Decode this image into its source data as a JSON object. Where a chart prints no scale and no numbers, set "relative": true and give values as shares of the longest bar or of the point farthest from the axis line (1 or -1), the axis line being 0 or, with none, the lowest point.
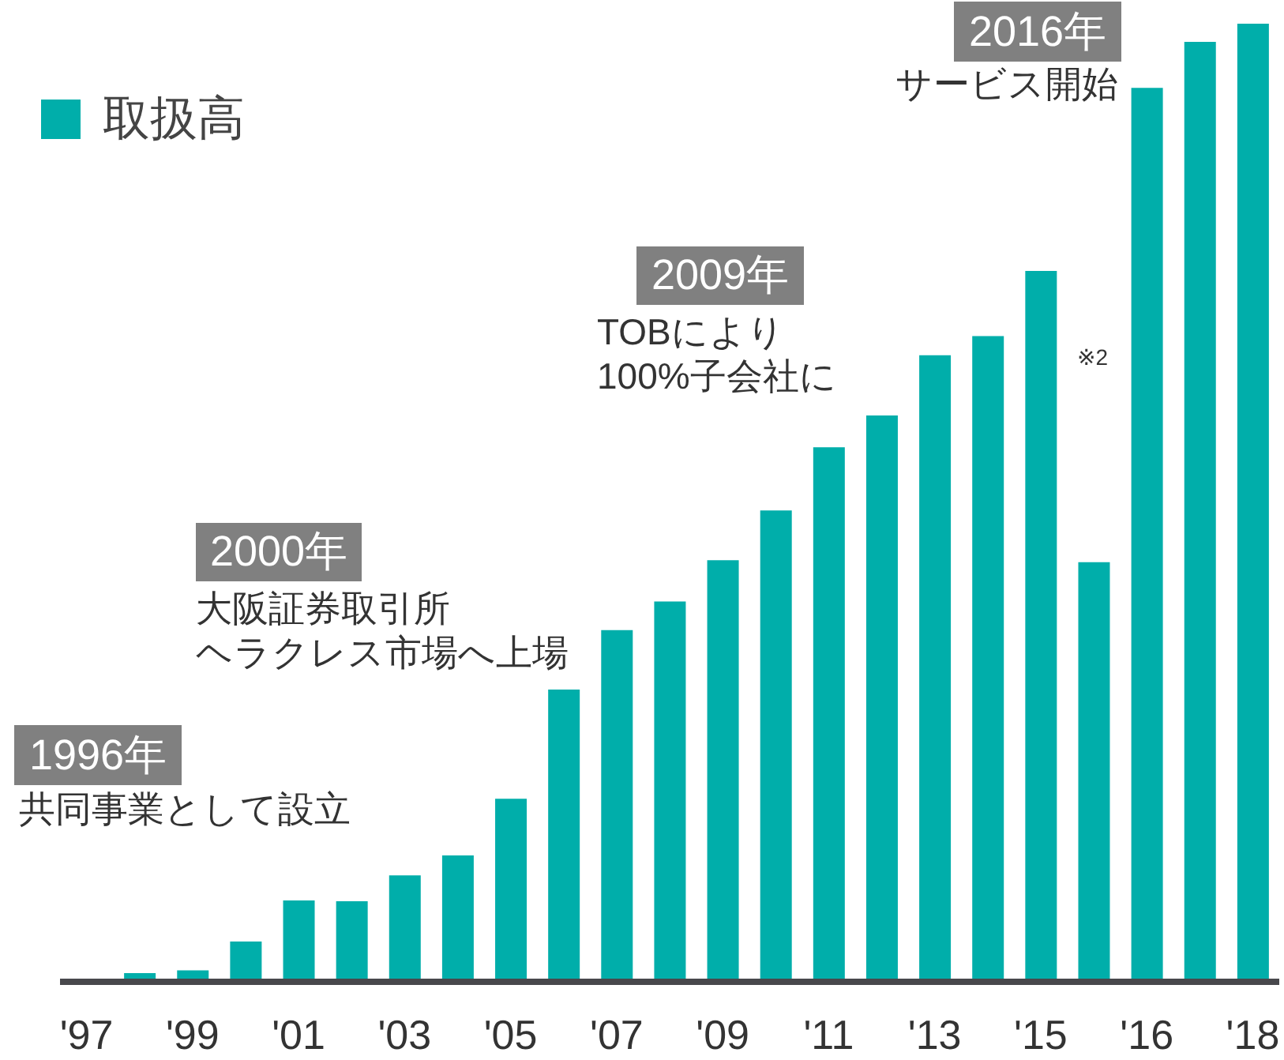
{
  "chart_data": {
    "type": "bar",
    "relative": true,
    "categories": [
      "'97",
      null,
      "'99",
      null,
      "'01",
      null,
      "'03",
      null,
      "'05",
      null,
      "'07",
      null,
      "'09",
      null,
      "'11",
      null,
      "'13",
      null,
      "'15",
      null,
      "'16",
      null,
      "'18"
    ],
    "series": [
      {
        "name": "取扱高",
        "color": "#00aeaa",
        "values": [
          0,
          0.009,
          0.012,
          0.042,
          0.085,
          0.084,
          0.111,
          0.132,
          0.191,
          0.305,
          0.367,
          0.397,
          0.44,
          0.492,
          0.558,
          0.591,
          0.654,
          0.674,
          0.742,
          0.438,
          0.933,
          0.981,
          1
        ]
      }
    ],
    "legend": "top left",
    "annotations": [
      "1996年",
      "共同事業として設立",
      "2000年",
      "大阪証券取引所",
      "ヘラクレス市場へ上場",
      "2009年",
      "TOBにより",
      "100%子会社に",
      "2016年",
      "サービス開始",
      "※2"
    ]
  }
}
